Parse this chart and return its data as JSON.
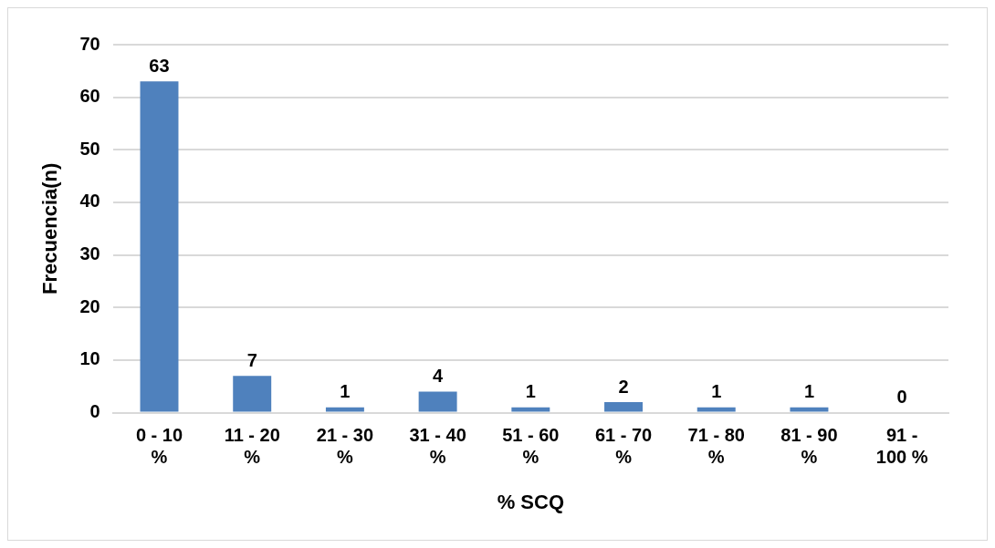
{
  "chart_data": {
    "type": "bar",
    "xlabel": "% SCQ",
    "ylabel": "Frecuencia(n)",
    "categories": [
      "0 - 10 %",
      "11 - 20 %",
      "21 - 30 %",
      "31 - 40 %",
      "51 - 60 %",
      "61 - 70 %",
      "71 - 80 %",
      "81 - 90 %",
      "91 - 100 %"
    ],
    "values": [
      63,
      7,
      1,
      4,
      1,
      2,
      1,
      1,
      0
    ],
    "color": "#4f81bd",
    "ylim": [
      0,
      70
    ],
    "yticks": [
      0,
      10,
      20,
      30,
      40,
      50,
      60,
      70
    ],
    "grid": "y",
    "data_labels": true,
    "legend": false
  }
}
